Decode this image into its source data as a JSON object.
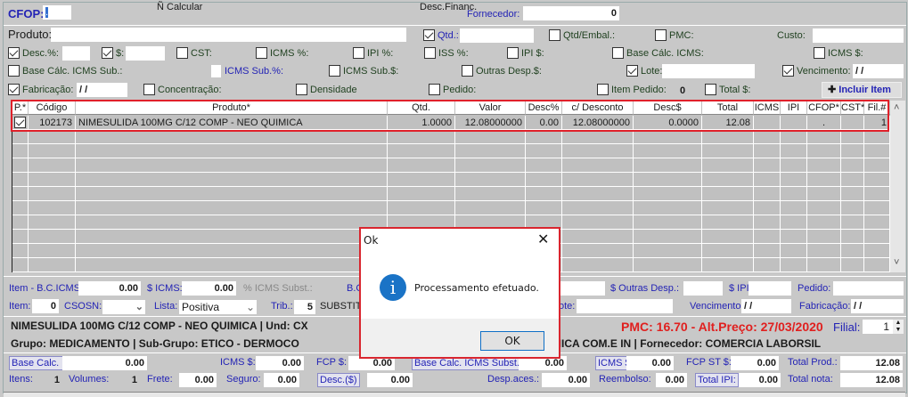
{
  "top": {
    "cfop_label": "CFOP:",
    "cfop_value": ".",
    "fornecedor_label": "Fornecedor:",
    "fornecedor_value": "0",
    "produto_label": "Produto:",
    "qtd_label": "Qtd.:",
    "qtd_embal_label": "Qtd/Embal.:",
    "pmc_label": "PMC:",
    "custo_label": "Custo:",
    "desc_pct_label": "Desc.%:",
    "desc_val_label": "$:",
    "cst_label": "CST:",
    "icms_pct_label": "ICMS %:",
    "ipi_pct_label": "IPI %:",
    "iss_pct_label": "ISS %:",
    "ipi_val_label": "IPI $:",
    "base_calc_icms_label": "Base Cálc. ICMS:",
    "icms_val_label": "ICMS $:",
    "base_calc_icms_sub_label": "Base Cálc. ICMS Sub.:",
    "icms_sub_pct_label": "ICMS Sub.%:",
    "icms_sub_val_label": "ICMS Sub.$:",
    "outras_desp_label": "Outras Desp.$:",
    "lote_label": "Lote:",
    "vencimento_label": "Vencimento:",
    "vencimento_value": " / /",
    "fabricacao_label": "Fabricação:",
    "fabricacao_value": " / /",
    "concentracao_label": "Concentração:",
    "densidade_label": "Densidade",
    "pedido_label": "Pedido:",
    "item_pedido_label": "Item Pedido:",
    "item_pedido_value": "0",
    "total_label": "Total $:",
    "incluir_item_label": "Incluir Item"
  },
  "checks": {
    "qtd": true,
    "qtd_embal": false,
    "pmc": false,
    "desc_pct": true,
    "desc_val": true,
    "cst": false,
    "icms_pct": false,
    "ipi_pct": false,
    "iss_pct": false,
    "ipi_val": false,
    "base_calc_icms": false,
    "icms_val": false,
    "base_calc_icms_sub": false,
    "icms_sub_val": false,
    "outras_desp": false,
    "lote": true,
    "vencimento": true,
    "fabricacao": true,
    "concentracao": false,
    "densidade": false,
    "pedido": false,
    "item_pedido": false,
    "total": false
  },
  "grid": {
    "columns": [
      "P.*",
      "Código",
      "Produto*",
      "Qtd.",
      "Valor",
      "Desc%",
      "c/ Desconto",
      "Desc$",
      "Total",
      "ICMS",
      "IPI",
      "CFOP*",
      "CST*",
      "Fil.#"
    ],
    "rows": [
      {
        "p": true,
        "cells": [
          "",
          "102173",
          "NIMESULIDA 100MG C/12 COMP - NEO QUIMICA",
          "1.0000",
          "12.08000000",
          "0.00",
          "12.08000000",
          "0.0000",
          "12.08",
          "",
          "",
          ".",
          "",
          "1"
        ]
      }
    ]
  },
  "bottom": {
    "item_bc_icms_label": "Item - B.C.ICMS:",
    "item_bc_icms_value": "0.00",
    "icms_label": "$ ICMS:",
    "icms_value": "0.00",
    "pct_icms_subst_label": "% ICMS Subst.:",
    "bc_label": "B.C",
    "outras_desp_label": "$ Outras Desp.:",
    "ipi_label": "$ IPI:",
    "pedido_label": "Pedido:",
    "item_label": "Item:",
    "item_value": "0",
    "csosn_label": "CSOSN:",
    "lista_label": "Lista:",
    "lista_value": "Positiva",
    "trib_label": "Trib.:",
    "trib_value": "5",
    "trib_desc": "SUBSTIT",
    "lote_label": "ote:",
    "vencimento_label": "Vencimento:",
    "vencimento_value": " / /",
    "fabricacao_label": "Fabricação:",
    "fabricacao_value": " / /",
    "product_line": "NIMESULIDA 100MG C/12 COMP - NEO QUIMICA | Und: CX",
    "pmc_text": "PMC:   16.70 - Alt.Preço: 27/03/2020",
    "filial_label": "Filial:",
    "filial_value": "1",
    "group_line": "Grupo: MEDICAMENTO | Sub-Grupo: ETICO - DERMOCO",
    "supplier_line": "MICA COM.E IN |  Fornecedor: COMERCIA LABORSIL",
    "base_calc_icms_label": "Base Calc. ICMS:",
    "base_calc_icms_value": "0.00",
    "n_calcular_label": "Ñ Calcular",
    "icms_val_label": "ICMS $:",
    "icms_val_value": "0.00",
    "fcp_label": "FCP $:",
    "fcp_value": "0.00",
    "base_calc_subst_label": "Base Calc. ICMS Subst.:",
    "base_calc_subst_value": "0.00",
    "icms_st_label": "ICMS $:",
    "icms_st_value": "0.00",
    "fcp_st_label": "FCP ST $:",
    "fcp_st_value": "0.00",
    "total_prod_label": "Total Prod.:",
    "total_prod_value": "12.08",
    "itens_label": "Itens:",
    "itens_value": "1",
    "volumes_label": "Volumes:",
    "volumes_value": "1",
    "frete_label": "Frete:",
    "frete_value": "0.00",
    "seguro_label": "Seguro:",
    "seguro_value": "0.00",
    "desc_label": "Desc.($)",
    "desc_value": "0.00",
    "desc_financ_label": "Desc.Financ.",
    "desp_aces_label": "Desp.aces.:",
    "desp_aces_value": "0.00",
    "reembolso_label": "Reembolso:",
    "reembolso_value": "0.00",
    "total_ipi_label": "Total IPI:",
    "total_ipi_value": "0.00",
    "total_nota_label": "Total nota:",
    "total_nota_value": "12.08"
  },
  "dialog": {
    "title": "Ok",
    "message": "Processamento efetuado.",
    "ok_label": "OK",
    "icon": "info-icon"
  }
}
